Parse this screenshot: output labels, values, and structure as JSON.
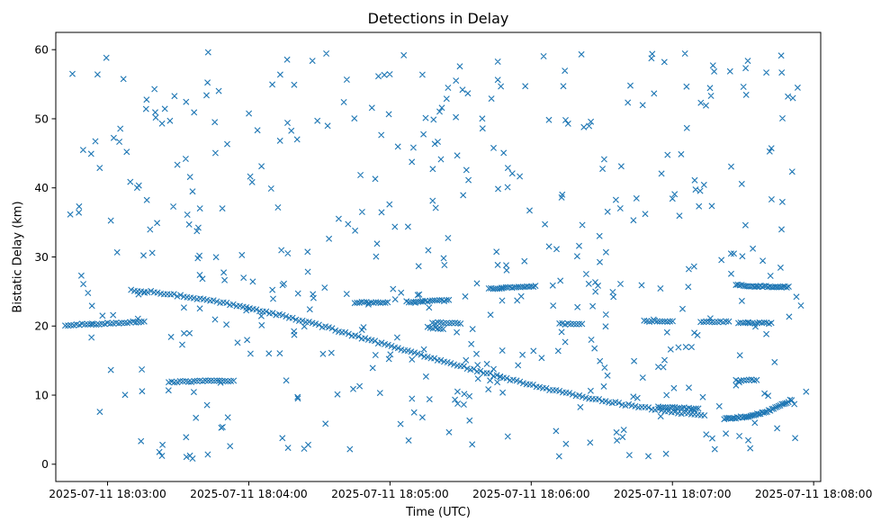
{
  "figure": {
    "background": "#ffffff",
    "spine_color": "#000000",
    "text_color": "#000000"
  },
  "chart_data": {
    "type": "scatter",
    "title": "Detections in Delay",
    "xlabel": "Time (UTC)",
    "ylabel": "Bistatic Delay (km)",
    "marker": "x",
    "marker_color": "#1f77b4",
    "grid": false,
    "legend": "none",
    "x_axis": {
      "unit": "seconds after 2025-07-11 18:00:00 UTC",
      "range": [
        158,
        483
      ],
      "ticks": [
        180,
        240,
        300,
        360,
        420,
        480
      ],
      "tick_labels": [
        "2025-07-11 18:03:00",
        "2025-07-11 18:04:00",
        "2025-07-11 18:05:00",
        "2025-07-11 18:06:00",
        "2025-07-11 18:07:00",
        "2025-07-11 18:08:00"
      ]
    },
    "y_axis": {
      "range": [
        -2.5,
        62.5
      ],
      "ticks": [
        0,
        10,
        20,
        30,
        40,
        50,
        60
      ],
      "tick_labels": [
        "0",
        "10",
        "20",
        "30",
        "40",
        "50",
        "60"
      ]
    },
    "tracks": [
      {
        "name": "descending-target-track",
        "step": 1.4,
        "jitter": 0.13,
        "control": [
          [
            190,
            25.2
          ],
          [
            200,
            24.9
          ],
          [
            212,
            24.3
          ],
          [
            224,
            23.7
          ],
          [
            236,
            22.9
          ],
          [
            248,
            22.0
          ],
          [
            260,
            21.0
          ],
          [
            272,
            19.9
          ],
          [
            284,
            18.7
          ],
          [
            296,
            17.5
          ],
          [
            308,
            16.3
          ],
          [
            320,
            15.1
          ],
          [
            332,
            14.0
          ],
          [
            344,
            12.9
          ],
          [
            356,
            11.8
          ],
          [
            368,
            10.8
          ],
          [
            380,
            9.9
          ],
          [
            392,
            9.1
          ],
          [
            404,
            8.4
          ],
          [
            416,
            7.8
          ],
          [
            426,
            7.3
          ],
          [
            434,
            7.05
          ]
        ]
      },
      {
        "name": "track-20km-start",
        "step": 1.2,
        "jitter": 0.12,
        "control": [
          [
            162,
            20.1
          ],
          [
            175,
            20.3
          ],
          [
            188,
            20.5
          ],
          [
            196,
            20.6
          ]
        ]
      },
      {
        "name": "track-12km-start",
        "step": 1.2,
        "jitter": 0.1,
        "control": [
          [
            206,
            11.9
          ],
          [
            234,
            12.1
          ]
        ]
      },
      {
        "name": "track-23p4km-mid",
        "step": 1.0,
        "jitter": 0.1,
        "control": [
          [
            285,
            23.4
          ],
          [
            299,
            23.4
          ]
        ]
      },
      {
        "name": "track-23p6km-mid",
        "step": 1.0,
        "jitter": 0.1,
        "control": [
          [
            307,
            23.5
          ],
          [
            325,
            23.7
          ]
        ]
      },
      {
        "name": "track-20p5km-mid",
        "step": 1.2,
        "jitter": 0.1,
        "control": [
          [
            318,
            20.5
          ],
          [
            330,
            20.4
          ]
        ]
      },
      {
        "name": "track-19p7km-mid",
        "step": 1.1,
        "jitter": 0.1,
        "control": [
          [
            316,
            19.8
          ],
          [
            323,
            19.6
          ]
        ]
      },
      {
        "name": "track-25p5km-mid",
        "step": 0.9,
        "jitter": 0.1,
        "control": [
          [
            342,
            25.4
          ],
          [
            362,
            25.8
          ]
        ]
      },
      {
        "name": "track-20p3km-right1",
        "step": 1.2,
        "jitter": 0.1,
        "control": [
          [
            372,
            20.3
          ],
          [
            382,
            20.3
          ]
        ]
      },
      {
        "name": "track-20p7km-right2",
        "step": 1.1,
        "jitter": 0.1,
        "control": [
          [
            408,
            20.7
          ],
          [
            421,
            20.7
          ]
        ]
      },
      {
        "name": "track-20p6km-right3",
        "step": 1.2,
        "jitter": 0.1,
        "control": [
          [
            432,
            20.6
          ],
          [
            444,
            20.6
          ]
        ]
      },
      {
        "name": "track-20p4km-right4",
        "step": 1.0,
        "jitter": 0.1,
        "control": [
          [
            448,
            20.5
          ],
          [
            462,
            20.4
          ]
        ]
      },
      {
        "name": "track-25p7km-right",
        "step": 0.8,
        "jitter": 0.1,
        "control": [
          [
            447,
            26.0
          ],
          [
            452,
            25.8
          ],
          [
            460,
            25.7
          ],
          [
            470,
            25.6
          ]
        ]
      },
      {
        "name": "track-8km-right",
        "step": 1.0,
        "jitter": 0.1,
        "control": [
          [
            414,
            8.3
          ],
          [
            424,
            8.2
          ],
          [
            431,
            8.0
          ]
        ]
      },
      {
        "name": "track-12km-right",
        "step": 1.1,
        "jitter": 0.1,
        "control": [
          [
            447,
            12.1
          ],
          [
            456,
            12.2
          ]
        ]
      },
      {
        "name": "rising-track-right",
        "step": 0.7,
        "jitter": 0.12,
        "control": [
          [
            442,
            6.6
          ],
          [
            449,
            6.8
          ],
          [
            456,
            7.2
          ],
          [
            462,
            7.9
          ],
          [
            467,
            8.7
          ],
          [
            471,
            9.4
          ]
        ]
      }
    ],
    "clutter": {
      "name": "clutter-detections",
      "count": 480,
      "t_range": [
        163,
        478
      ],
      "delay_range": [
        0.7,
        59.7
      ],
      "seed": 20250711
    }
  }
}
